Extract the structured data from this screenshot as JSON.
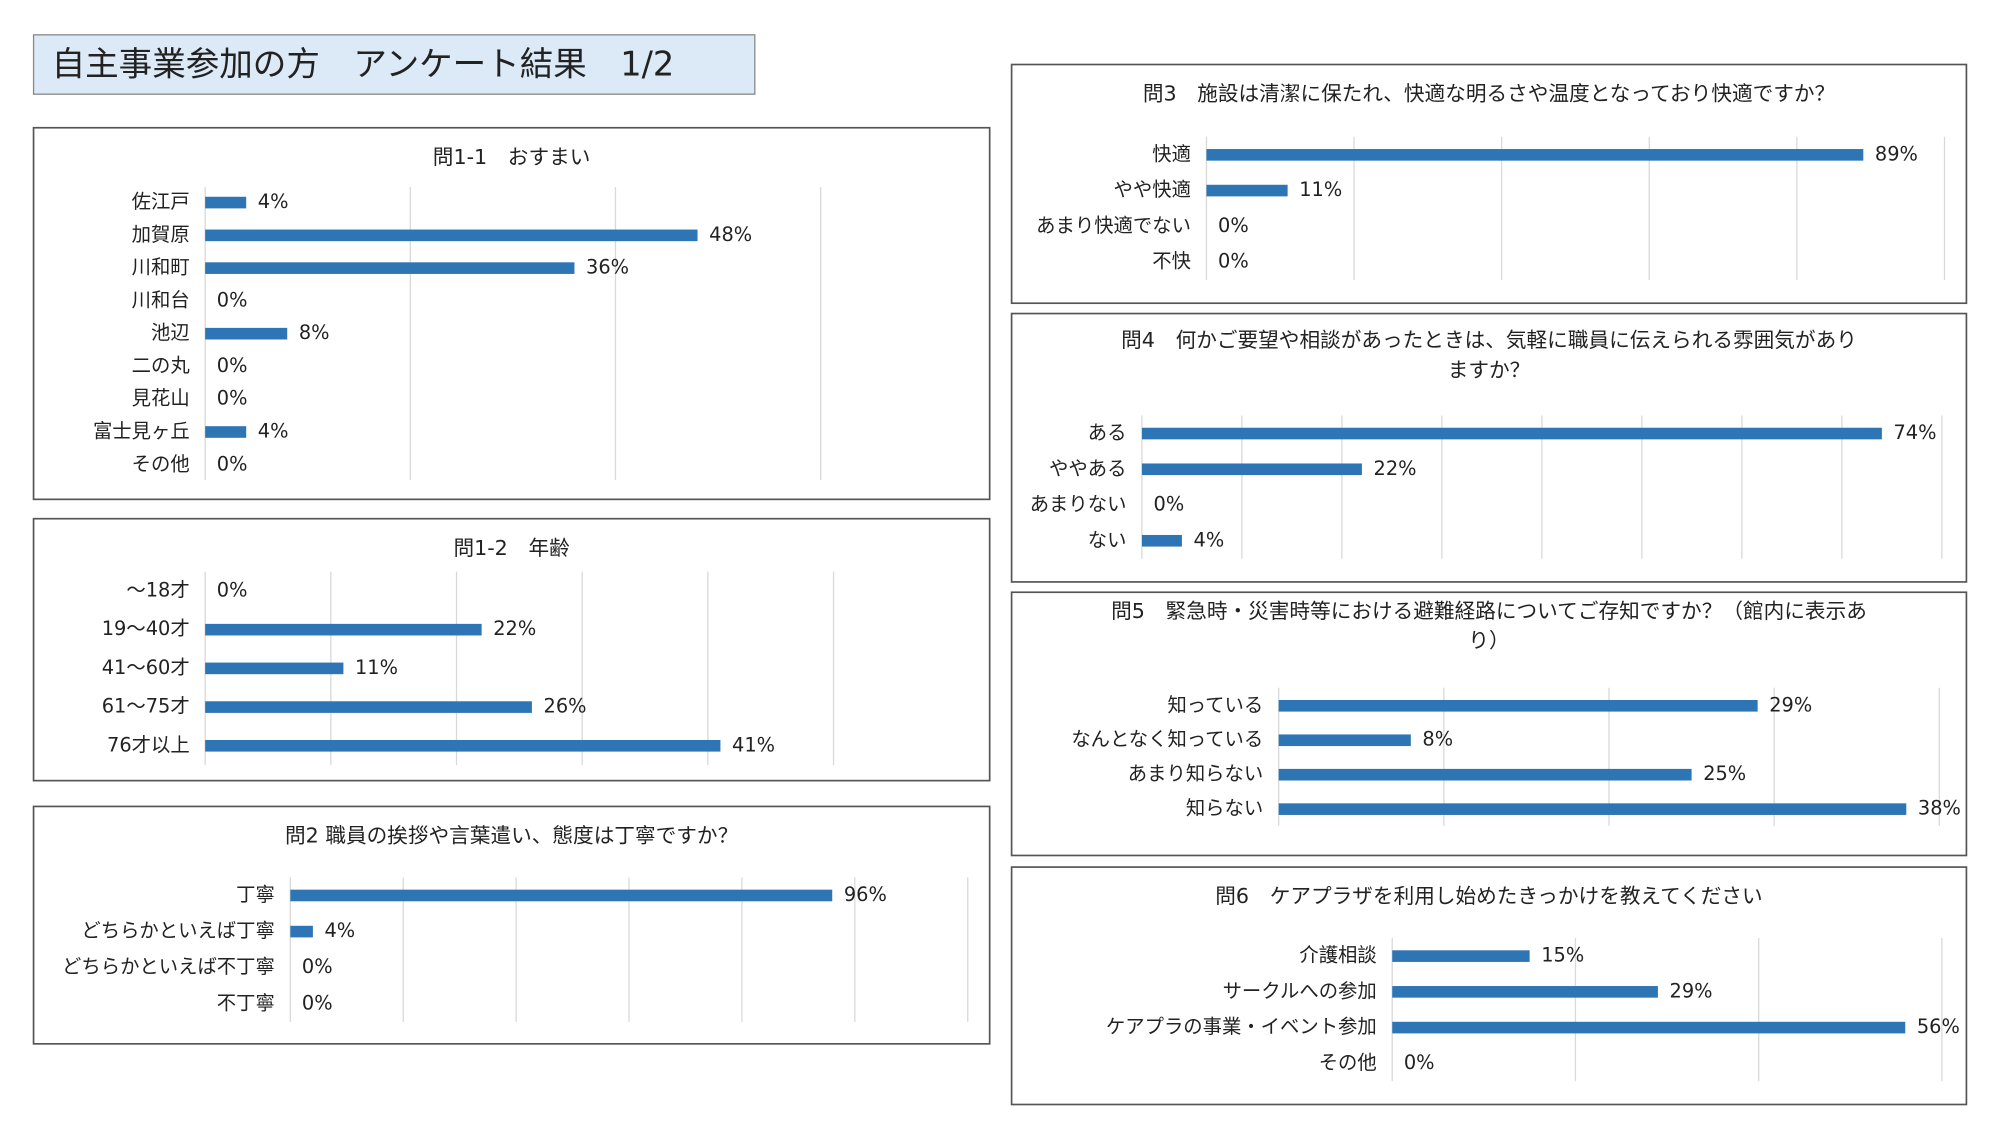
{
  "title": "自主事業参加の方　アンケート結果　1/2",
  "chart_data": [
    {
      "type": "bar",
      "orientation": "horizontal",
      "title": "問1-1　おすまい",
      "categories": [
        "佐江戸",
        "加賀原",
        "川和町",
        "川和台",
        "池辺",
        "二の丸",
        "見花山",
        "富士見ヶ丘",
        "その他"
      ],
      "values": [
        4,
        48,
        36,
        0,
        8,
        0,
        0,
        4,
        0
      ],
      "value_labels": [
        "4%",
        "48%",
        "36%",
        "0%",
        "8%",
        "0%",
        "0%",
        "4%",
        "0%"
      ],
      "color": "#2e75b6",
      "xlim": [
        0,
        60
      ],
      "xticks": [
        0,
        20,
        40,
        60
      ],
      "grid": true
    },
    {
      "type": "bar",
      "orientation": "horizontal",
      "title": "問1-2　年齢",
      "categories": [
        "～18才",
        "19～40才",
        "41～60才",
        "61～75才",
        "76才以上"
      ],
      "values": [
        0,
        22,
        11,
        26,
        41
      ],
      "value_labels": [
        "0%",
        "22%",
        "11%",
        "26%",
        "41%"
      ],
      "color": "#2e75b6",
      "xlim": [
        0,
        50
      ],
      "xticks": [
        0,
        10,
        20,
        30,
        40,
        50
      ],
      "grid": true
    },
    {
      "type": "bar",
      "orientation": "horizontal",
      "title": "問2 職員の挨拶や言葉遣い、態度は丁寧ですか？",
      "categories": [
        "丁寧",
        "どちらかといえば丁寧",
        "どちらかといえば不丁寧",
        "不丁寧"
      ],
      "values": [
        96,
        4,
        0,
        0
      ],
      "value_labels": [
        "96%",
        "4%",
        "0%",
        "0%"
      ],
      "color": "#2e75b6",
      "xlim": [
        0,
        120
      ],
      "xticks": [
        0,
        20,
        40,
        60,
        80,
        100,
        120
      ],
      "grid": true
    },
    {
      "type": "bar",
      "orientation": "horizontal",
      "title": "問3　施設は清潔に保たれ、快適な明るさや温度となっており快適ですか？",
      "categories": [
        "快適",
        "やや快適",
        "あまり快適でない",
        "不快"
      ],
      "values": [
        89,
        11,
        0,
        0
      ],
      "value_labels": [
        "89%",
        "11%",
        "0%",
        "0%"
      ],
      "color": "#2e75b6",
      "xlim": [
        0,
        100
      ],
      "xticks": [
        0,
        20,
        40,
        60,
        80,
        100
      ],
      "grid": true
    },
    {
      "type": "bar",
      "orientation": "horizontal",
      "title": "問4　何かご要望や相談があったときは、気軽に職員に伝えられる雰囲気がありますか？",
      "categories": [
        "ある",
        "ややある",
        "あまりない",
        "ない"
      ],
      "values": [
        74,
        22,
        0,
        4
      ],
      "value_labels": [
        "74%",
        "22%",
        "0%",
        "4%"
      ],
      "color": "#2e75b6",
      "xlim": [
        0,
        80
      ],
      "xticks": [
        0,
        10,
        20,
        30,
        40,
        50,
        60,
        70,
        80
      ],
      "grid": true
    },
    {
      "type": "bar",
      "orientation": "horizontal",
      "title": "問5　緊急時・災害時等における避難経路についてご存知ですか？（館内に表示あり）",
      "categories": [
        "知っている",
        "なんとなく知っている",
        "あまり知らない",
        "知らない"
      ],
      "values": [
        29,
        8,
        25,
        38
      ],
      "value_labels": [
        "29%",
        "8%",
        "25%",
        "38%"
      ],
      "color": "#2e75b6",
      "xlim": [
        0,
        40
      ],
      "xticks": [
        0,
        10,
        20,
        30,
        40
      ],
      "grid": true
    },
    {
      "type": "bar",
      "orientation": "horizontal",
      "title": "問6　ケアプラザを利用し始めたきっかけを教えてください",
      "categories": [
        "介護相談",
        "サークルへの参加",
        "ケアプラの事業・イベント参加",
        "その他"
      ],
      "values": [
        15,
        29,
        56,
        0
      ],
      "value_labels": [
        "15%",
        "29%",
        "56%",
        "0%"
      ],
      "color": "#2e75b6",
      "xlim": [
        0,
        60
      ],
      "xticks": [
        0,
        20,
        40,
        60
      ],
      "grid": true
    }
  ]
}
